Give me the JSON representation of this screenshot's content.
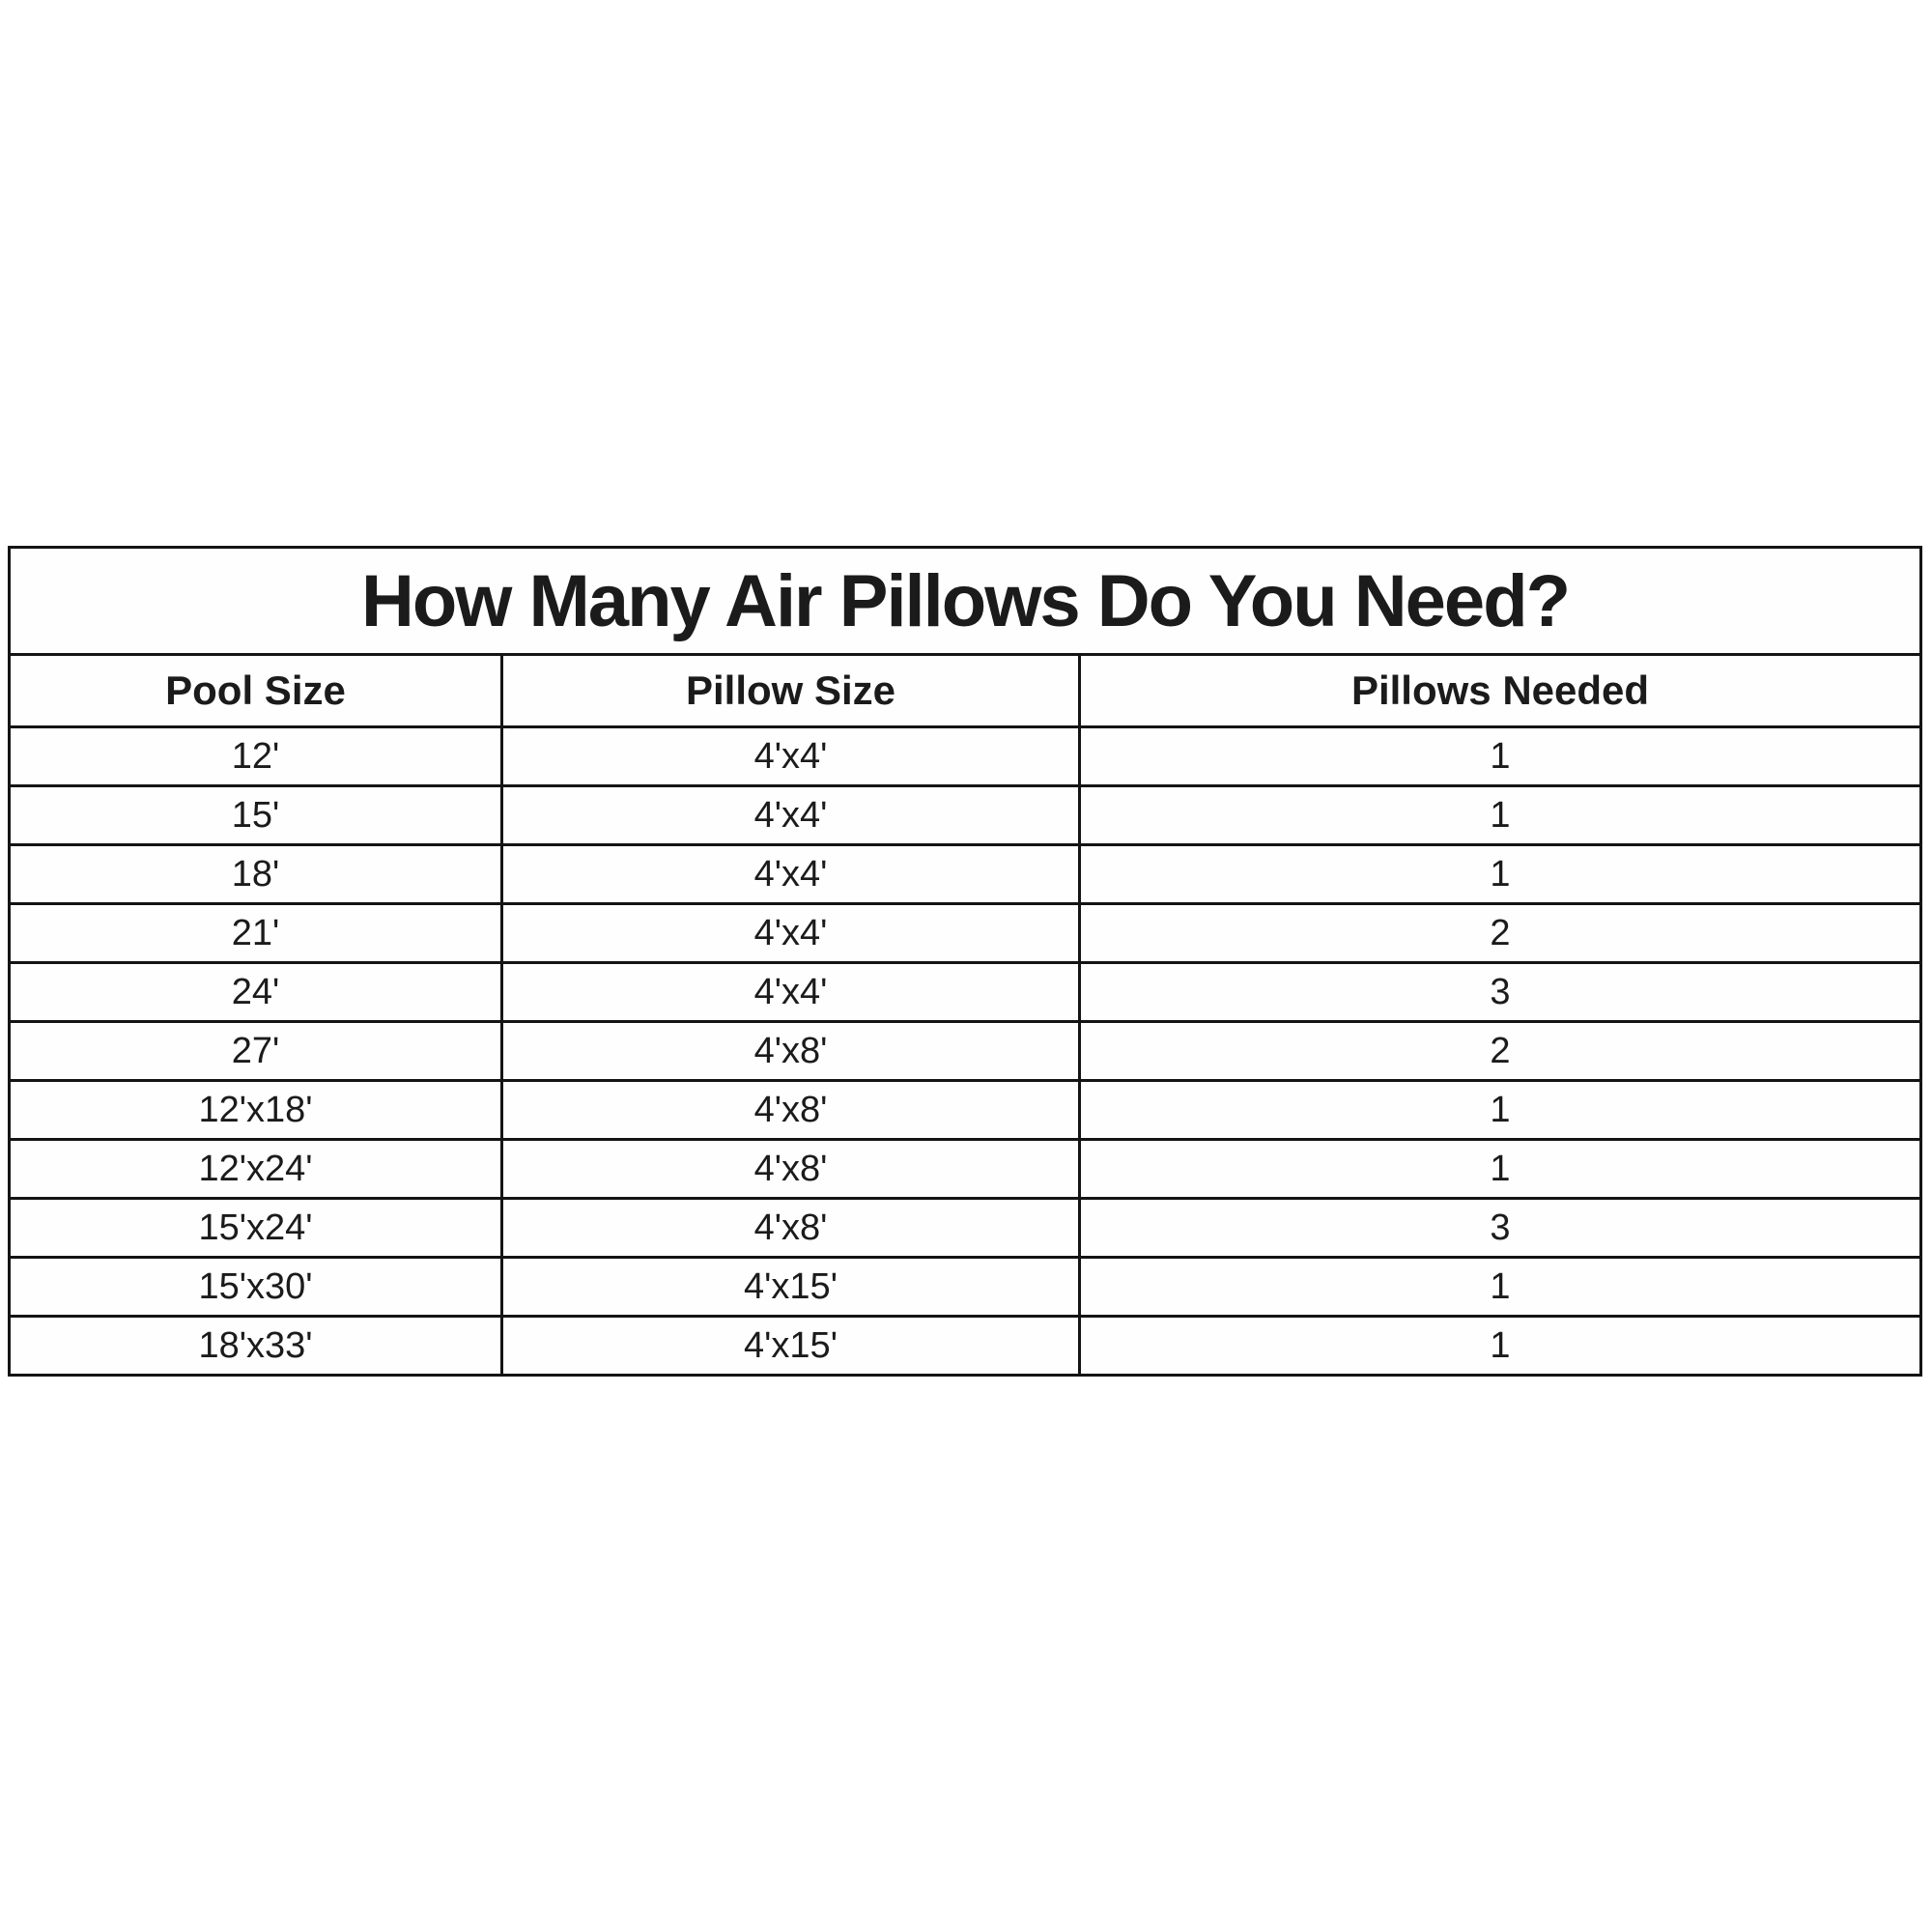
{
  "table": {
    "title": "How Many Air Pillows Do You Need?",
    "columns": [
      "Pool Size",
      "Pillow Size",
      "Pillows Needed"
    ],
    "rows": [
      [
        "12'",
        "4'x4'",
        "1"
      ],
      [
        "15'",
        "4'x4'",
        "1"
      ],
      [
        "18'",
        "4'x4'",
        "1"
      ],
      [
        "21'",
        "4'x4'",
        "2"
      ],
      [
        "24'",
        "4'x4'",
        "3"
      ],
      [
        "27'",
        "4'x8'",
        "2"
      ],
      [
        "12'x18'",
        "4'x8'",
        "1"
      ],
      [
        "12'x24'",
        "4'x8'",
        "1"
      ],
      [
        "15'x24'",
        "4'x8'",
        "3"
      ],
      [
        "15'x30'",
        "4'x15'",
        "1"
      ],
      [
        "18'x33'",
        "4'x15'",
        "1"
      ]
    ]
  },
  "colors": {
    "border": "#141414",
    "text": "#1b1b1b",
    "background": "#ffffff"
  }
}
